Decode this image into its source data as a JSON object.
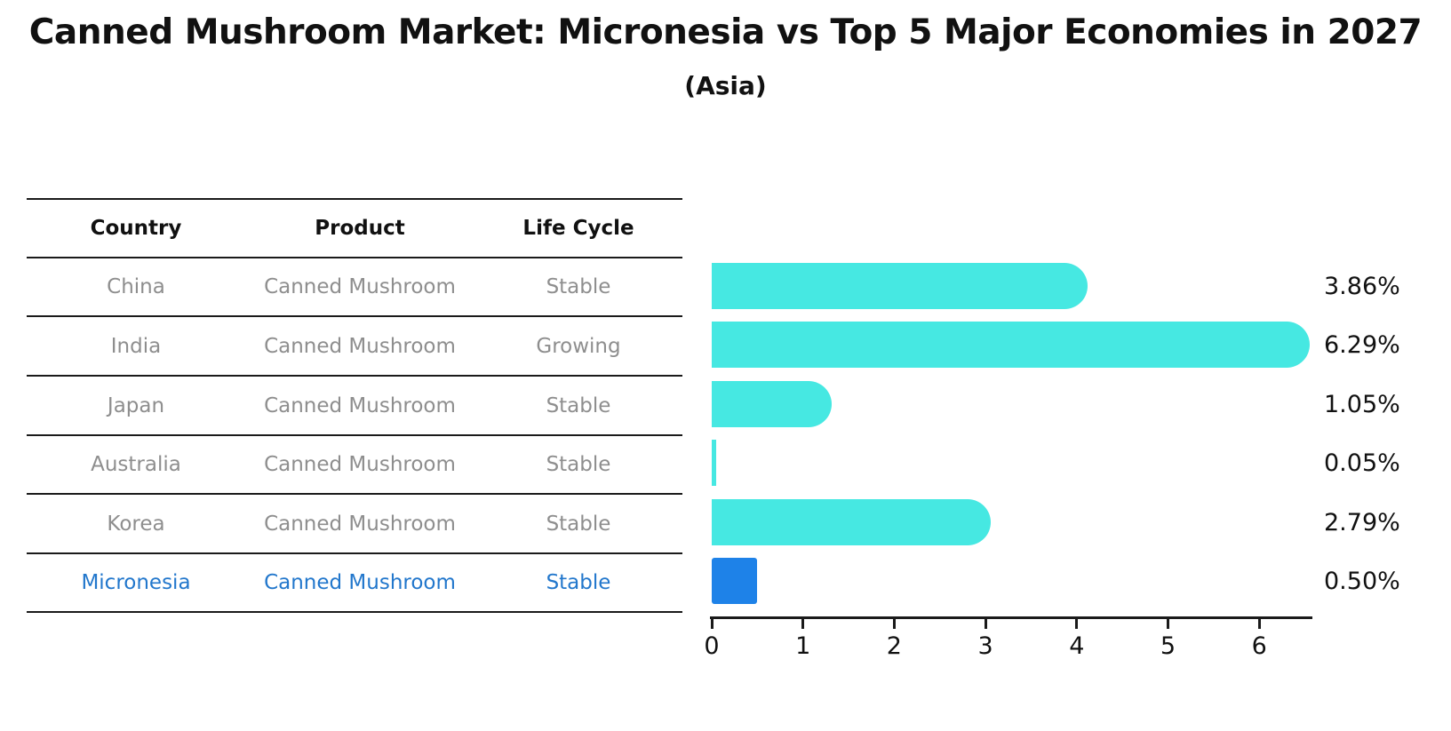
{
  "title": "Canned Mushroom Market: Micronesia vs Top 5 Major Economies in 2027",
  "subtitle": "(Asia)",
  "table": {
    "headers": [
      "Country",
      "Product",
      "Life Cycle"
    ],
    "rows": [
      {
        "country": "China",
        "product": "Canned Mushroom",
        "life_cycle": "Stable",
        "highlight": false
      },
      {
        "country": "India",
        "product": "Canned Mushroom",
        "life_cycle": "Growing",
        "highlight": false
      },
      {
        "country": "Japan",
        "product": "Canned Mushroom",
        "life_cycle": "Stable",
        "highlight": false
      },
      {
        "country": "Australia",
        "product": "Canned Mushroom",
        "life_cycle": "Stable",
        "highlight": false
      },
      {
        "country": "Korea",
        "product": "Canned Mushroom",
        "life_cycle": "Stable",
        "highlight": false
      },
      {
        "country": "Micronesia",
        "product": "Canned Mushroom",
        "life_cycle": "Stable",
        "highlight": true
      }
    ]
  },
  "chart_data": {
    "type": "bar",
    "orientation": "horizontal",
    "categories": [
      "China",
      "India",
      "Japan",
      "Australia",
      "Korea",
      "Micronesia"
    ],
    "values": [
      3.86,
      6.29,
      1.05,
      0.05,
      2.79,
      0.5
    ],
    "value_labels": [
      "3.86%",
      "6.29%",
      "1.05%",
      "0.05%",
      "2.79%",
      "0.50%"
    ],
    "highlight_index": 5,
    "xlim": [
      0,
      6.6
    ],
    "x_ticks": [
      "0",
      "1",
      "2",
      "3",
      "4",
      "5",
      "6"
    ],
    "grid": false,
    "legend_position": "none",
    "bar_color": "#46e8e2",
    "highlight_bar_color": "#1e82e8",
    "highlight_text_color": "#2277cc",
    "row_text_color": "#8e8e8e",
    "axis_color": "#1a1a1a"
  }
}
